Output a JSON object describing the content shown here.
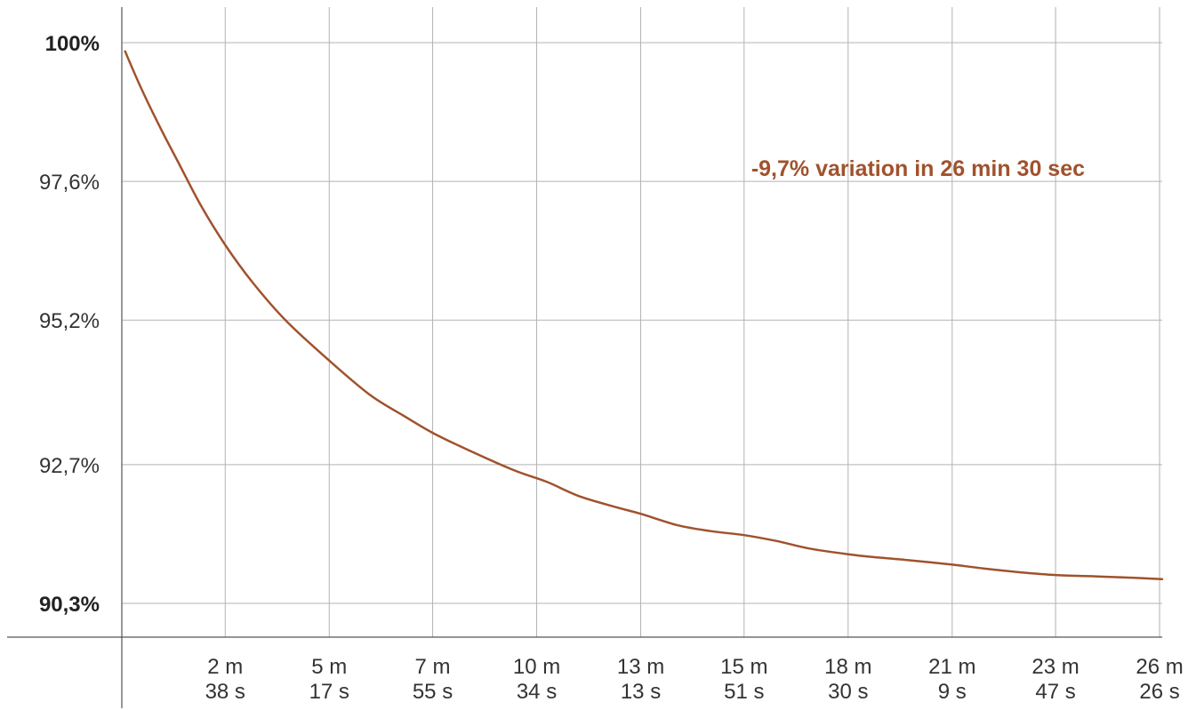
{
  "chart_data": {
    "type": "line",
    "title": "",
    "xlabel": "",
    "ylabel": "",
    "annotation": "-9,7% variation in 26 min 30 sec",
    "line_color": "#A0522D",
    "grid": true,
    "xlim": [
      0,
      1590
    ],
    "ylim": [
      90.3,
      100
    ],
    "y_ticks": [
      {
        "value": 100,
        "label": "100%",
        "bold": true
      },
      {
        "value": 97.6,
        "label": "97,6%",
        "bold": false
      },
      {
        "value": 95.2,
        "label": "95,2%",
        "bold": false
      },
      {
        "value": 92.7,
        "label": "92,7%",
        "bold": false
      },
      {
        "value": 90.3,
        "label": "90,3%",
        "bold": true
      }
    ],
    "x_ticks": [
      {
        "value": 158,
        "line1": "2 m",
        "line2": "38 s"
      },
      {
        "value": 317,
        "line1": "5 m",
        "line2": "17 s"
      },
      {
        "value": 475,
        "line1": "7 m",
        "line2": "55 s"
      },
      {
        "value": 634,
        "line1": "10 m",
        "line2": "34 s"
      },
      {
        "value": 793,
        "line1": "13 m",
        "line2": "13 s"
      },
      {
        "value": 951,
        "line1": "15 m",
        "line2": "51 s"
      },
      {
        "value": 1110,
        "line1": "18 m",
        "line2": "30 s"
      },
      {
        "value": 1269,
        "line1": "21 m",
        "line2": "9 s"
      },
      {
        "value": 1427,
        "line1": "23 m",
        "line2": "47 s"
      },
      {
        "value": 1586,
        "line1": "26 m",
        "line2": "26 s"
      }
    ],
    "series": [
      {
        "x": [
          5,
          30,
          60,
          90,
          120,
          158,
          200,
          250,
          317,
          380,
          430,
          475,
          530,
          600,
          650,
          700,
          760,
          793,
          850,
          900,
          951,
          1000,
          1050,
          1110,
          1150,
          1200,
          1269,
          1320,
          1380,
          1427,
          1480,
          1530,
          1590
        ],
        "y": [
          99.85,
          99.2,
          98.5,
          97.85,
          97.2,
          96.5,
          95.85,
          95.2,
          94.5,
          93.9,
          93.55,
          93.25,
          92.95,
          92.6,
          92.4,
          92.15,
          91.95,
          91.85,
          91.65,
          91.55,
          91.48,
          91.38,
          91.25,
          91.15,
          91.1,
          91.05,
          90.97,
          90.9,
          90.83,
          90.79,
          90.77,
          90.75,
          90.72
        ]
      }
    ]
  }
}
